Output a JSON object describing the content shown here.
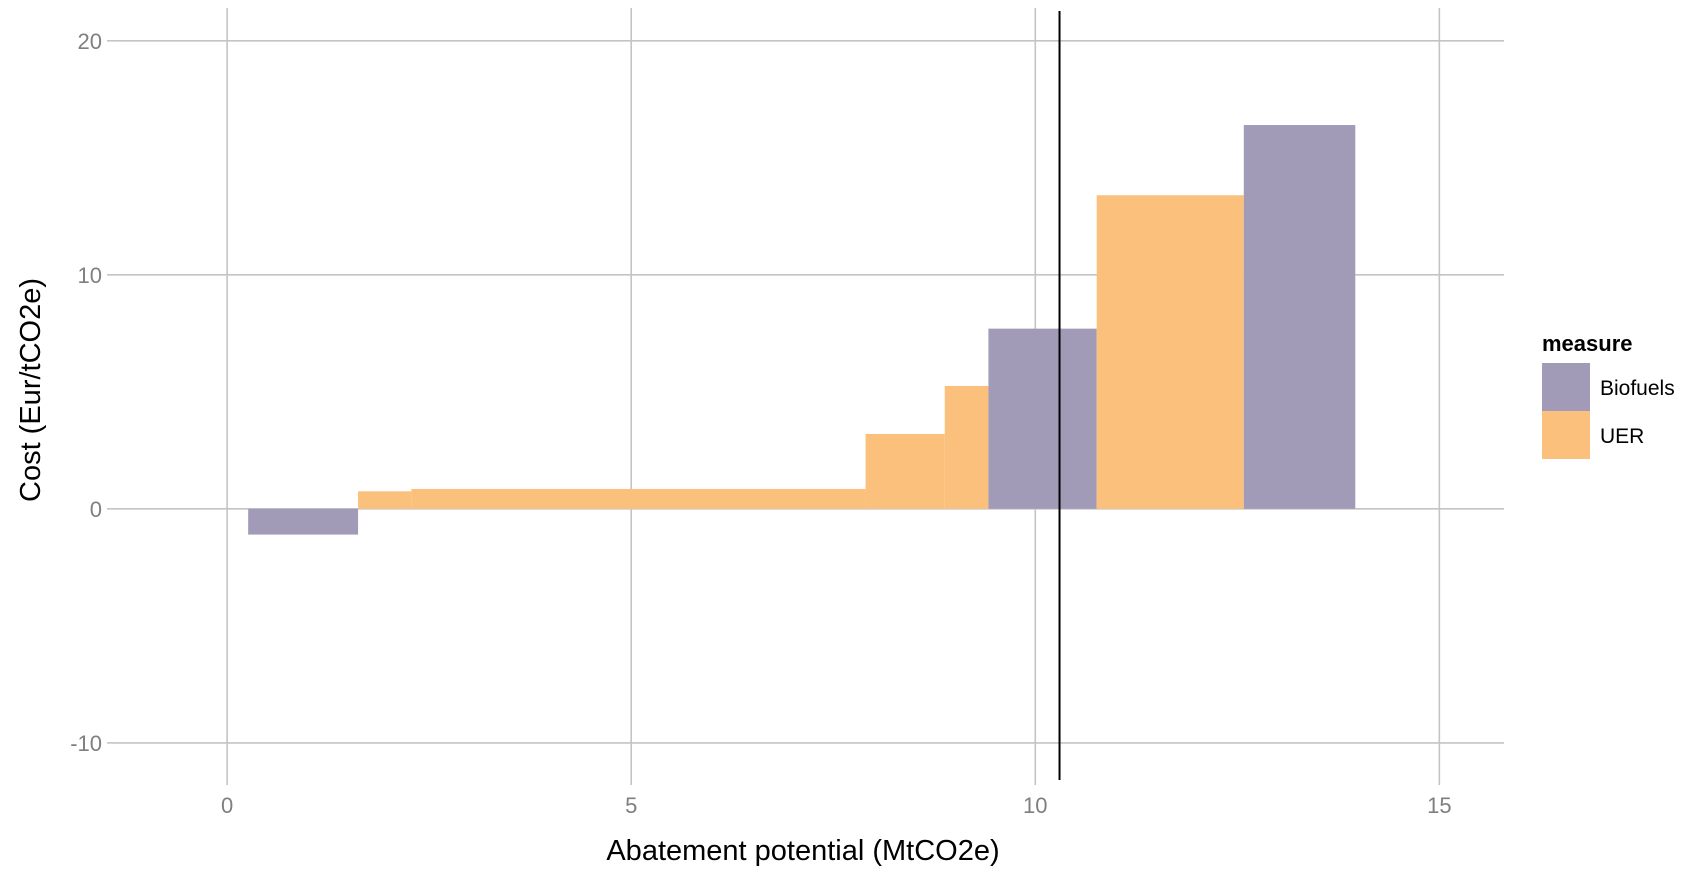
{
  "chart_data": {
    "type": "bar",
    "subtype": "marginal-abatement-cost-curve",
    "xlabel": "Abatement potential (MtCO2e)",
    "ylabel": "Cost (Eur/tCO2e)",
    "xlim": [
      -1.4,
      15.8
    ],
    "ylim": [
      -11.5,
      21.4
    ],
    "x_ticks": [
      0,
      5,
      10,
      15
    ],
    "x_tick_labels": [
      "0",
      "5",
      "10",
      "15"
    ],
    "y_ticks": [
      -10,
      0,
      10,
      20
    ],
    "y_tick_labels": [
      "-10",
      "0",
      "10",
      "20"
    ],
    "grid": true,
    "legend": {
      "title": "measure",
      "position": "right",
      "entries": [
        {
          "label": "Biofuels",
          "color": "#a29bb8"
        },
        {
          "label": "UER",
          "color": "#fbc17c"
        }
      ]
    },
    "vertical_line": {
      "x": 10.3,
      "color": "#000000"
    },
    "bars": [
      {
        "measure": "Biofuels",
        "x_start": 0.26,
        "x_end": 1.62,
        "cost": -1.1
      },
      {
        "measure": "UER",
        "x_start": 1.62,
        "x_end": 2.28,
        "cost": 0.75
      },
      {
        "measure": "UER",
        "x_start": 2.28,
        "x_end": 7.9,
        "cost": 0.85
      },
      {
        "measure": "UER",
        "x_start": 7.9,
        "x_end": 8.88,
        "cost": 3.2
      },
      {
        "measure": "UER",
        "x_start": 8.88,
        "x_end": 9.42,
        "cost": 5.25
      },
      {
        "measure": "Biofuels",
        "x_start": 9.42,
        "x_end": 10.76,
        "cost": 7.7
      },
      {
        "measure": "UER",
        "x_start": 10.76,
        "x_end": 12.58,
        "cost": 13.4
      },
      {
        "measure": "Biofuels",
        "x_start": 12.58,
        "x_end": 13.96,
        "cost": 16.4
      }
    ]
  }
}
